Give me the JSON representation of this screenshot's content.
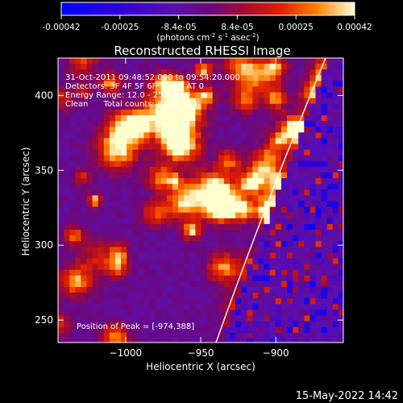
{
  "colorbar": {
    "tick_labels": [
      "-0.00042",
      "-0.00025",
      "-8.4e-05",
      "8.4e-05",
      "0.00025",
      "0.00042"
    ],
    "unit_main": "(photons cm",
    "unit_exp1": "-2",
    "unit_mid": " s",
    "unit_exp2": "-1",
    "unit_mid2": " asec",
    "unit_exp3": "-2",
    "unit_end": ")"
  },
  "chart_data": {
    "type": "heatmap",
    "title": "Reconstructed RHESSI Image",
    "xlabel": "Heliocentric X (arcsec)",
    "ylabel": "Heliocentric Y (arcsec)",
    "xlim": [
      -1045,
      -855
    ],
    "ylim": [
      235,
      425
    ],
    "x_ticks": [
      -1000,
      -950,
      -900
    ],
    "y_ticks": [
      250,
      300,
      350,
      400
    ],
    "colorscale_range": [
      -0.00042,
      0.00042
    ],
    "info_lines": [
      "31-Oct-2011 09:48:52.000 to 09:54:20.000",
      "Detectors: 3F 4F 5F 6F 7F 8F, AT 0",
      "Energy Range: 12.0 - 25.0 keV",
      "Clean      Total counts: 8.45E+03"
    ],
    "peak_label": "Position of Peak = [-974,388]",
    "peak_position": [
      -974,
      388
    ]
  },
  "footer": {
    "date": "15-May-2022 14:42"
  }
}
